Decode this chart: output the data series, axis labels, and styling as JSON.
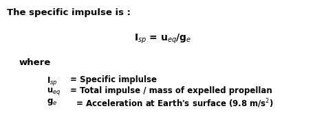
{
  "background_color": "#ffffff",
  "title_text": "The specific impulse is :",
  "formula_text": "I$_{sp}$ = u$_{eq}$/g$_{e}$",
  "where_text": "where",
  "line1_left": "I$_{sp}$",
  "line1_right": "= Specific implulse",
  "line2_left": "u$_{eq}$",
  "line2_right": "= Total impulse / mass of expelled propellan",
  "line3_left": "g$_{e}$",
  "line3_right": "  = Acceleration at Earth's surface (9.8 m/s$^{2}$)",
  "font_size_title": 9.5,
  "font_size_formula": 10,
  "font_size_body": 8.5
}
